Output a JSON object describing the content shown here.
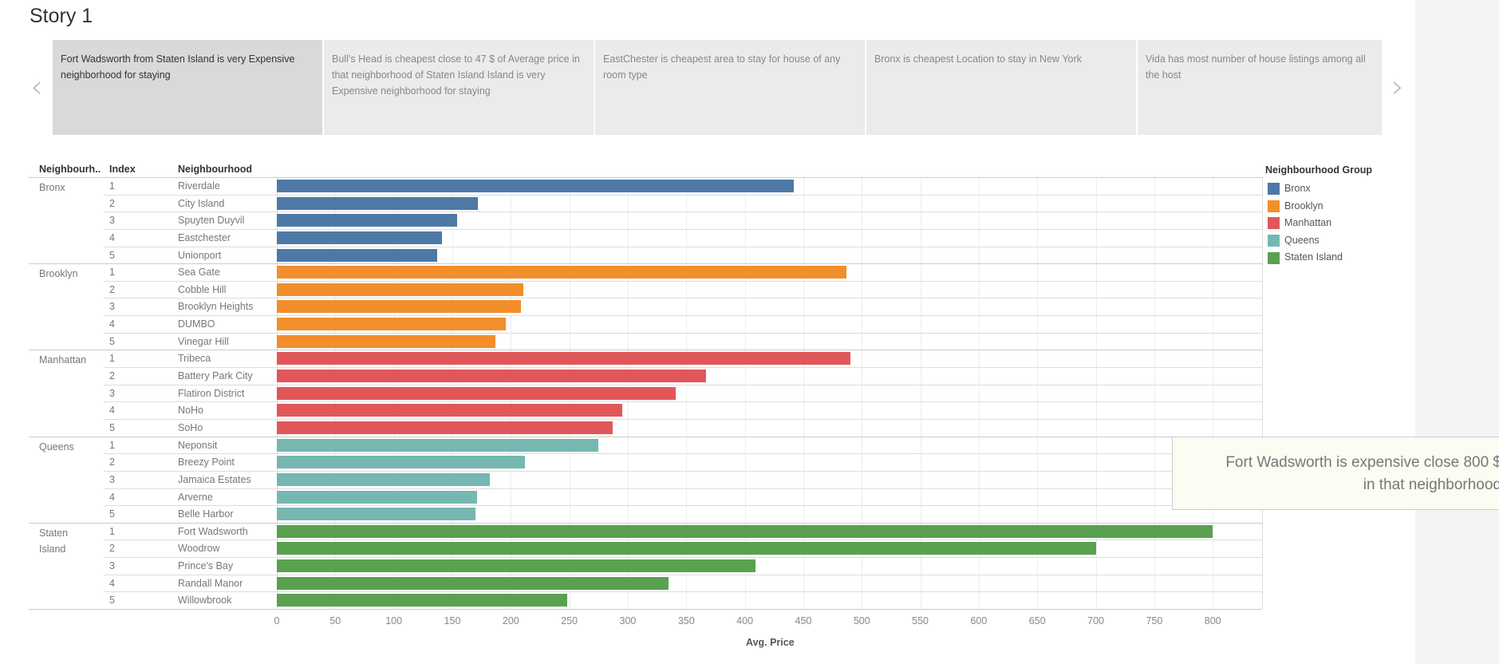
{
  "story": {
    "title": "Story 1",
    "tabs": [
      {
        "label": "Fort Wadsworth from Staten Island is very Expensive neighborhood for staying",
        "active": true
      },
      {
        "label": "Bull’s Head is cheapest close to 47 $ of Average price in that neighborhood of Staten Island  Island is very Expensive neighborhood for staying",
        "active": false
      },
      {
        "label": "EastChester is cheapest area to stay for house of any room type",
        "active": false
      },
      {
        "label": "Bronx is cheapest Location to stay in New York",
        "active": false
      },
      {
        "label": "Vida has most number of house listings among all the host",
        "active": false
      }
    ],
    "prev_icon": "chevron-left-icon",
    "next_icon": "chevron-right-icon"
  },
  "tooltip": {
    "line1": "Fort Wadsworth is expensive close 800 $",
    "line2": "in that neighborhood"
  },
  "chart_data": {
    "type": "bar",
    "orientation": "horizontal",
    "column_headers": [
      "Neighbourh..",
      "Index",
      "Neighbourhood"
    ],
    "xlabel": "Avg. Price",
    "xlim": [
      0,
      840
    ],
    "xticks": [
      0,
      50,
      100,
      150,
      200,
      250,
      300,
      350,
      400,
      450,
      500,
      550,
      600,
      650,
      700,
      750,
      800
    ],
    "grid": true,
    "legend": {
      "title": "Neighbourhood Group",
      "placement": "right"
    },
    "groups": [
      {
        "name": "Bronx",
        "color": "#4e79a7",
        "items": [
          {
            "index": "1",
            "neighbourhood": "Riverdale",
            "value": 442
          },
          {
            "index": "2",
            "neighbourhood": "City Island",
            "value": 172
          },
          {
            "index": "3",
            "neighbourhood": "Spuyten Duyvil",
            "value": 154
          },
          {
            "index": "4",
            "neighbourhood": "Eastchester",
            "value": 141
          },
          {
            "index": "5",
            "neighbourhood": "Unionport",
            "value": 137
          }
        ]
      },
      {
        "name": "Brooklyn",
        "color": "#f28e2b",
        "items": [
          {
            "index": "1",
            "neighbourhood": "Sea Gate",
            "value": 487
          },
          {
            "index": "2",
            "neighbourhood": "Cobble Hill",
            "value": 211
          },
          {
            "index": "3",
            "neighbourhood": "Brooklyn Heights",
            "value": 209
          },
          {
            "index": "4",
            "neighbourhood": "DUMBO",
            "value": 196
          },
          {
            "index": "5",
            "neighbourhood": "Vinegar Hill",
            "value": 187
          }
        ]
      },
      {
        "name": "Manhattan",
        "color": "#e15759",
        "items": [
          {
            "index": "1",
            "neighbourhood": "Tribeca",
            "value": 490
          },
          {
            "index": "2",
            "neighbourhood": "Battery Park City",
            "value": 367
          },
          {
            "index": "3",
            "neighbourhood": "Flatiron District",
            "value": 341
          },
          {
            "index": "4",
            "neighbourhood": "NoHo",
            "value": 295
          },
          {
            "index": "5",
            "neighbourhood": "SoHo",
            "value": 287
          }
        ]
      },
      {
        "name": "Queens",
        "color": "#76b7b2",
        "items": [
          {
            "index": "1",
            "neighbourhood": "Neponsit",
            "value": 275
          },
          {
            "index": "2",
            "neighbourhood": "Breezy Point",
            "value": 212
          },
          {
            "index": "3",
            "neighbourhood": "Jamaica Estates",
            "value": 182
          },
          {
            "index": "4",
            "neighbourhood": "Arverne",
            "value": 171
          },
          {
            "index": "5",
            "neighbourhood": "Belle Harbor",
            "value": 170
          }
        ]
      },
      {
        "name": "Staten Island",
        "color": "#59a14f",
        "items": [
          {
            "index": "1",
            "neighbourhood": "Fort Wadsworth",
            "value": 800
          },
          {
            "index": "2",
            "neighbourhood": "Woodrow",
            "value": 700
          },
          {
            "index": "3",
            "neighbourhood": "Prince's Bay",
            "value": 409
          },
          {
            "index": "4",
            "neighbourhood": "Randall Manor",
            "value": 335
          },
          {
            "index": "5",
            "neighbourhood": "Willowbrook",
            "value": 248
          }
        ]
      }
    ]
  }
}
